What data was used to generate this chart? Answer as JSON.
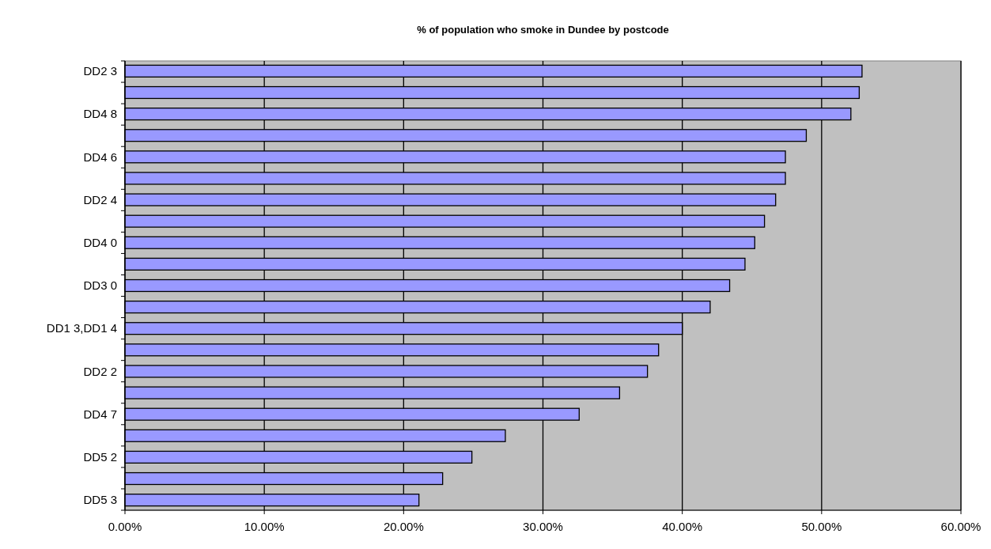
{
  "chart_data": {
    "type": "bar",
    "orientation": "horizontal",
    "title": "% of population who smoke in Dundee by postcode",
    "categories": [
      "DD2 3",
      null,
      "DD4 8",
      null,
      "DD4 6",
      null,
      "DD2 4",
      null,
      "DD4 0",
      null,
      "DD3 0",
      null,
      "DD1 3,DD1 4",
      null,
      "DD2 2",
      null,
      "DD4 7",
      null,
      "DD5 2",
      null,
      "DD5 3"
    ],
    "values": [
      52.9,
      52.7,
      52.1,
      48.9,
      47.4,
      47.4,
      46.7,
      45.9,
      45.2,
      44.5,
      43.4,
      42.0,
      40.0,
      38.3,
      37.5,
      35.5,
      32.6,
      27.3,
      24.9,
      22.8,
      21.1
    ],
    "color": "#9999ff",
    "xlim": [
      0,
      60
    ],
    "xticks": [
      {
        "value": 0,
        "label": "0.00%"
      },
      {
        "value": 10,
        "label": "10.00%"
      },
      {
        "value": 20,
        "label": "20.00%"
      },
      {
        "value": 30,
        "label": "30.00%"
      },
      {
        "value": 40,
        "label": "40.00%"
      },
      {
        "value": 50,
        "label": "50.00%"
      },
      {
        "value": 60,
        "label": "60.00%"
      }
    ],
    "grid": "x"
  }
}
